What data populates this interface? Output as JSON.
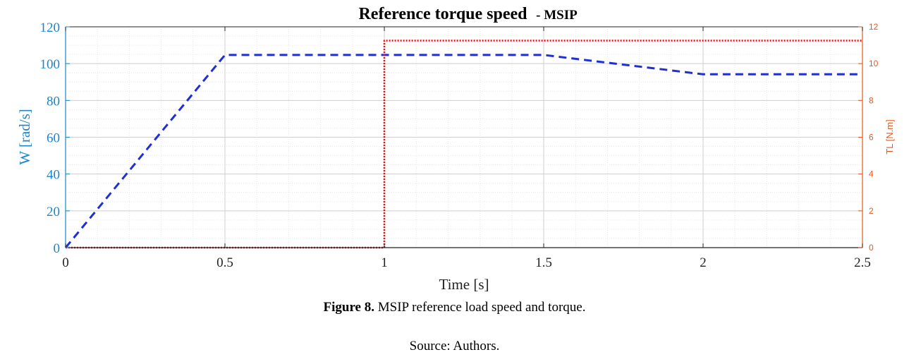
{
  "chart_data": {
    "type": "line",
    "title": "Reference torque speed",
    "subtitle": "- MSIP",
    "xlabel": "Time [s]",
    "ylabel_left": "W [rad/s]",
    "ylabel_right": "TL [N.m]",
    "xlim": [
      0,
      2.5
    ],
    "ylim_left": [
      0,
      120
    ],
    "ylim_right": [
      0,
      12
    ],
    "xticks": [
      "0",
      "0.5",
      "1",
      "1.5",
      "2",
      "2.5"
    ],
    "yticks_left": [
      "0",
      "20",
      "40",
      "60",
      "80",
      "100",
      "120"
    ],
    "yticks_right": [
      "0",
      "2",
      "4",
      "6",
      "8",
      "10",
      "12"
    ],
    "grid": true,
    "series": [
      {
        "axis": "left",
        "color": "#1f2fd6",
        "style": "dashed",
        "x": [
          0,
          0.5,
          1.0,
          1.5,
          2.0,
          2.5
        ],
        "y": [
          0,
          104.7,
          104.7,
          104.7,
          94.2,
          94.2
        ]
      },
      {
        "axis": "right",
        "color": "#e8141c",
        "style": "dotted",
        "x": [
          0,
          1.0,
          1.0,
          2.5
        ],
        "y": [
          0,
          0,
          11.25,
          11.25
        ]
      }
    ],
    "colors": {
      "left_axis": "#1a86c9",
      "right_axis": "#e8561c"
    }
  },
  "caption": {
    "label": "Figure 8.",
    "text": " MSIP reference load speed and torque."
  },
  "source": "Source: Authors."
}
